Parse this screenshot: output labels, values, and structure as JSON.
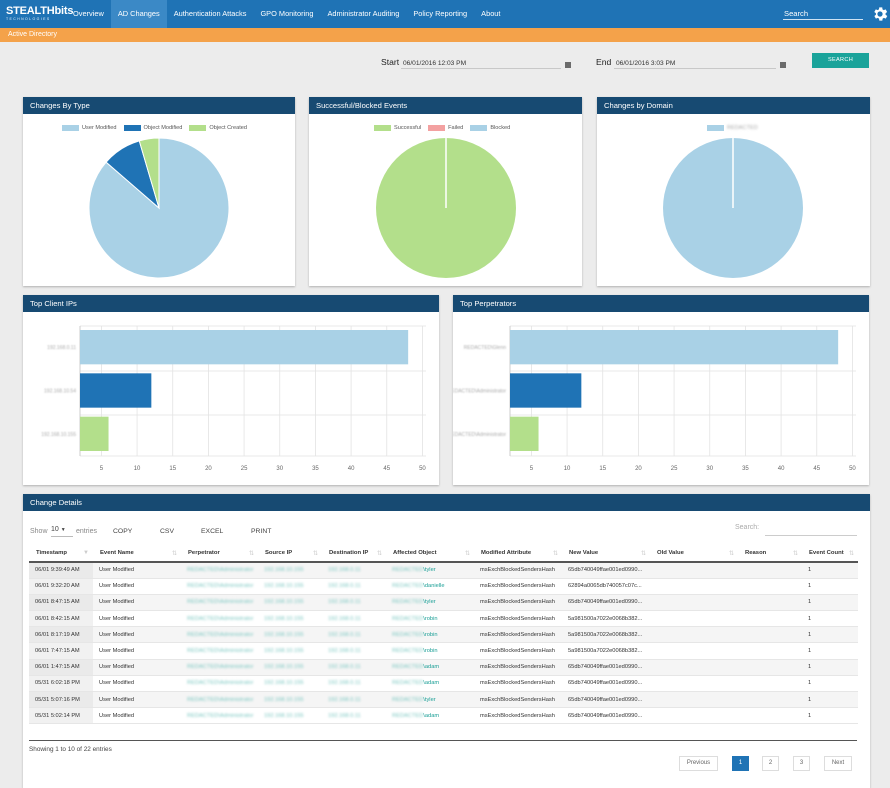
{
  "nav": {
    "logo_main": "STEALTHbits",
    "logo_sub": "TECHNOLOGIES",
    "items": [
      "Overview",
      "AD Changes",
      "Authentication Attacks",
      "GPO Monitoring",
      "Administrator Auditing",
      "Policy Reporting",
      "About"
    ],
    "active_index": 1,
    "search_placeholder": "Search"
  },
  "subbar": "Active Directory",
  "date_range": {
    "start_label": "Start",
    "start_value": "06/01/2016 12:03 PM",
    "end_label": "End",
    "end_value": "06/01/2016 3:03 PM",
    "search_button": "SEARCH"
  },
  "colors": {
    "nav": "#1f73b5",
    "subbar": "#f4a24a",
    "panel_header": "#174a72",
    "light_blue": "#a9d1e6",
    "dark_blue": "#1f73b5",
    "green": "#b3df8b",
    "pink": "#f3a1a1",
    "teal": "#1aa39a"
  },
  "panels": {
    "changes_by_type": "Changes By Type",
    "success_blocked": "Successful/Blocked Events",
    "changes_by_domain": "Changes by Domain",
    "top_client_ips": "Top Client IPs",
    "top_perpetrators": "Top Perpetrators",
    "change_details": "Change Details"
  },
  "chart_data": [
    {
      "type": "pie",
      "labels": [
        "User Modified",
        "Object Modified",
        "Object Created"
      ],
      "values": [
        19,
        2,
        1
      ],
      "colors": [
        "#a9d1e6",
        "#1f73b5",
        "#b3df8b"
      ]
    },
    {
      "type": "pie",
      "labels": [
        "Successful",
        "Failed",
        "Blocked"
      ],
      "values": [
        22,
        0,
        0
      ],
      "colors": [
        "#b3df8b",
        "#f3a1a1",
        "#a9d1e6"
      ]
    },
    {
      "type": "pie",
      "labels": [
        "REDACTED"
      ],
      "values": [
        22
      ],
      "colors": [
        "#a9d1e6"
      ]
    },
    {
      "type": "bar",
      "orientation": "horizontal",
      "categories": [
        "192.168.0.11",
        "192.168.10.54",
        "192.168.10.155"
      ],
      "values": [
        48,
        12,
        6
      ],
      "colors": [
        "#a9d1e6",
        "#1f73b5",
        "#b3df8b"
      ],
      "xticks": [
        5,
        10,
        15,
        20,
        25,
        30,
        35,
        40,
        45,
        50
      ]
    },
    {
      "type": "bar",
      "orientation": "horizontal",
      "categories": [
        "REDACTED\\Glenn",
        "REDACTED\\Administrator",
        "REDACTED\\Administrator"
      ],
      "values": [
        48,
        12,
        6
      ],
      "colors": [
        "#a9d1e6",
        "#1f73b5",
        "#b3df8b"
      ],
      "xticks": [
        5,
        10,
        15,
        20,
        25,
        30,
        35,
        40,
        45,
        50
      ]
    }
  ],
  "details": {
    "show": "Show",
    "entries_value": "10",
    "entries": "entries",
    "buttons": [
      "COPY",
      "CSV",
      "EXCEL",
      "PRINT"
    ],
    "search_label": "Search:",
    "columns": [
      "Timestamp",
      "Event Name",
      "Perpetrator",
      "Source IP",
      "Destination IP",
      "Affected Object",
      "Modified Attribute",
      "New Value",
      "Old Value",
      "Reason",
      "Event Count"
    ],
    "rows": [
      {
        "ts": "06/01 9:39:49 AM",
        "event": "User Modified",
        "perp": "REDACTED\\Administrator",
        "src": "192.168.10.155",
        "dst": "192.168.0.11",
        "obj_domain": "REDACTED",
        "obj_user": "\\tyler",
        "attr": "msExchBlockedSendersHash",
        "newval": "65db740049ffae001ed0990...",
        "oldval": "",
        "reason": "",
        "count": "1"
      },
      {
        "ts": "06/01 9:32:20 AM",
        "event": "User Modified",
        "perp": "REDACTED\\Administrator",
        "src": "192.168.10.155",
        "dst": "192.168.0.11",
        "obj_domain": "REDACTED",
        "obj_user": "\\danielle",
        "attr": "msExchBlockedSendersHash",
        "newval": "62894a0065db740057c07c...",
        "oldval": "",
        "reason": "",
        "count": "1"
      },
      {
        "ts": "06/01 8:47:15 AM",
        "event": "User Modified",
        "perp": "REDACTED\\Administrator",
        "src": "192.168.10.155",
        "dst": "192.168.0.11",
        "obj_domain": "REDACTED",
        "obj_user": "\\tyler",
        "attr": "msExchBlockedSendersHash",
        "newval": "65db740049ffae001ed0990...",
        "oldval": "",
        "reason": "",
        "count": "1"
      },
      {
        "ts": "06/01 8:42:15 AM",
        "event": "User Modified",
        "perp": "REDACTED\\Administrator",
        "src": "192.168.10.155",
        "dst": "192.168.0.11",
        "obj_domain": "REDACTED",
        "obj_user": "\\robin",
        "attr": "msExchBlockedSendersHash",
        "newval": "5a981500a7022e0068b382...",
        "oldval": "",
        "reason": "",
        "count": "1"
      },
      {
        "ts": "06/01 8:17:19 AM",
        "event": "User Modified",
        "perp": "REDACTED\\Administrator",
        "src": "192.168.10.155",
        "dst": "192.168.0.11",
        "obj_domain": "REDACTED",
        "obj_user": "\\robin",
        "attr": "msExchBlockedSendersHash",
        "newval": "5a981500a7022e0068b382...",
        "oldval": "",
        "reason": "",
        "count": "1"
      },
      {
        "ts": "06/01 7:47:15 AM",
        "event": "User Modified",
        "perp": "REDACTED\\Administrator",
        "src": "192.168.10.155",
        "dst": "192.168.0.11",
        "obj_domain": "REDACTED",
        "obj_user": "\\robin",
        "attr": "msExchBlockedSendersHash",
        "newval": "5a981500a7022e0068b382...",
        "oldval": "",
        "reason": "",
        "count": "1"
      },
      {
        "ts": "06/01 1:47:15 AM",
        "event": "User Modified",
        "perp": "REDACTED\\Administrator",
        "src": "192.168.10.155",
        "dst": "192.168.0.11",
        "obj_domain": "REDACTED",
        "obj_user": "\\adam",
        "attr": "msExchBlockedSendersHash",
        "newval": "65db740049ffae001ed0990...",
        "oldval": "",
        "reason": "",
        "count": "1"
      },
      {
        "ts": "05/31 6:02:18 PM",
        "event": "User Modified",
        "perp": "REDACTED\\Administrator",
        "src": "192.168.10.155",
        "dst": "192.168.0.11",
        "obj_domain": "REDACTED",
        "obj_user": "\\adam",
        "attr": "msExchBlockedSendersHash",
        "newval": "65db740049ffae001ed0990...",
        "oldval": "",
        "reason": "",
        "count": "1"
      },
      {
        "ts": "05/31 5:07:16 PM",
        "event": "User Modified",
        "perp": "REDACTED\\Administrator",
        "src": "192.168.10.155",
        "dst": "192.168.0.11",
        "obj_domain": "REDACTED",
        "obj_user": "\\tyler",
        "attr": "msExchBlockedSendersHash",
        "newval": "65db740049ffae001ed0990...",
        "oldval": "",
        "reason": "",
        "count": "1"
      },
      {
        "ts": "05/31 5:02:14 PM",
        "event": "User Modified",
        "perp": "REDACTED\\Administrator",
        "src": "192.168.10.155",
        "dst": "192.168.0.11",
        "obj_domain": "REDACTED",
        "obj_user": "\\adam",
        "attr": "msExchBlockedSendersHash",
        "newval": "65db740049ffae001ed0990...",
        "oldval": "",
        "reason": "",
        "count": "1"
      }
    ],
    "info": "Showing 1 to 10 of 22 entries",
    "pagination": {
      "previous": "Previous",
      "pages": [
        "1",
        "2",
        "3"
      ],
      "current": "1",
      "next": "Next"
    }
  }
}
